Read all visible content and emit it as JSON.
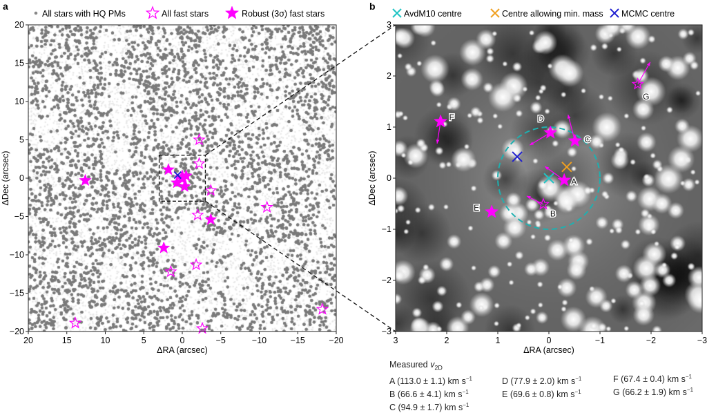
{
  "chart_data": [
    {
      "panel_label": "a",
      "type": "scatter",
      "xlabel": "ΔRA (arcsec)",
      "ylabel": "ΔDec (arcsec)",
      "xlim": [
        20,
        -20
      ],
      "ylim": [
        -20,
        20
      ],
      "xticks": [
        "20",
        "15",
        "10",
        "5",
        "0",
        "−5",
        "−10",
        "−15",
        "−20"
      ],
      "yticks": [
        "20",
        "15",
        "10",
        "5",
        "0",
        "−5",
        "−10",
        "−15",
        "−20"
      ],
      "legend": {
        "placement": "top",
        "entries": [
          "All stars with HQ PMs",
          "All fast stars",
          "Robust (3σ) fast stars"
        ]
      },
      "background_points_color": "#7a7a7a",
      "star_color": "#ff00ff",
      "centre_marker_color": "#1f1fd0",
      "zoom_box": {
        "ra": [
          3,
          -3
        ],
        "dec": [
          -3,
          3
        ]
      },
      "all_fast_stars": [
        {
          "ra": -2.2,
          "dec": 5.0
        },
        {
          "ra": -2.2,
          "dec": 1.9
        },
        {
          "ra": -3.7,
          "dec": -1.6
        },
        {
          "ra": -11.0,
          "dec": -3.8
        },
        {
          "ra": -2.0,
          "dec": -4.8
        },
        {
          "ra": -1.8,
          "dec": -11.3
        },
        {
          "ra": 1.5,
          "dec": -12.2
        },
        {
          "ra": 13.9,
          "dec": -18.9
        },
        {
          "ra": -18.2,
          "dec": -17.1
        },
        {
          "ra": -2.6,
          "dec": -19.6
        }
      ],
      "robust_fast_stars": [
        {
          "ra": 12.6,
          "dec": -0.3
        },
        {
          "ra": 2.4,
          "dec": -9.1
        },
        {
          "ra": -3.7,
          "dec": -5.4
        },
        {
          "ra": 1.8,
          "dec": 1.1
        },
        {
          "ra": 0.7,
          "dec": -0.6
        },
        {
          "ra": -0.5,
          "dec": 0.3
        },
        {
          "ra": -0.3,
          "dec": -1.1
        },
        {
          "ra": 0.0,
          "dec": 0.0
        }
      ],
      "centre": {
        "ra": 0.6,
        "dec": 0.4
      }
    },
    {
      "panel_label": "b",
      "type": "scatter",
      "xlabel": "ΔRA (arcsec)",
      "ylabel": "ΔDec (arcsec)",
      "xlim": [
        3,
        -3
      ],
      "ylim": [
        -3,
        3
      ],
      "xticks": [
        "3",
        "2",
        "1",
        "0",
        "−1",
        "−2",
        "−3"
      ],
      "yticks": [
        "3",
        "2",
        "1",
        "0",
        "−1",
        "−2",
        "−3"
      ],
      "legend": {
        "placement": "top",
        "entries": [
          {
            "label": "AvdM10 centre",
            "color": "#1fc4c4"
          },
          {
            "label": "Centre allowing min. mass",
            "color": "#f0a020"
          },
          {
            "label": "MCMC centre",
            "color": "#1f1fd0"
          }
        ]
      },
      "centres": [
        {
          "name": "AvdM10 centre",
          "ra": 0.0,
          "dec": 0.0,
          "color": "#1fc4c4"
        },
        {
          "name": "Centre allowing min. mass",
          "ra": -0.35,
          "dec": 0.22,
          "color": "#f0a020"
        },
        {
          "name": "MCMC centre",
          "ra": 0.62,
          "dec": 0.42,
          "color": "#1f1fd0"
        }
      ],
      "circle_radius_arcsec": 1.0,
      "stars": [
        {
          "label": "A",
          "ra": -0.3,
          "dec": -0.04,
          "robust": true
        },
        {
          "label": "B",
          "ra": 0.11,
          "dec": -0.51,
          "robust": false
        },
        {
          "label": "C",
          "ra": -0.51,
          "dec": 0.73,
          "robust": true
        },
        {
          "label": "D",
          "ra": -0.03,
          "dec": 0.89,
          "robust": true
        },
        {
          "label": "E",
          "ra": 1.12,
          "dec": -0.66,
          "robust": true
        },
        {
          "label": "F",
          "ra": 2.12,
          "dec": 1.11,
          "robust": true
        },
        {
          "label": "G",
          "ra": -1.74,
          "dec": 1.84,
          "robust": false
        }
      ]
    }
  ],
  "velocities": {
    "title": "Measured ",
    "title_var": "v",
    "title_sub": "2D",
    "unit": " km s",
    "unit_exp": "−1",
    "items": [
      {
        "label": "A",
        "value": "113.0 ± 1.1"
      },
      {
        "label": "B",
        "value": "66.6 ± 4.1"
      },
      {
        "label": "C",
        "value": "94.9 ± 1.7"
      },
      {
        "label": "D",
        "value": "77.9 ± 2.0"
      },
      {
        "label": "E",
        "value": "69.6 ± 0.8"
      },
      {
        "label": "F",
        "value": "67.4 ± 0.4"
      },
      {
        "label": "G",
        "value": "66.2 ± 1.9"
      }
    ]
  }
}
